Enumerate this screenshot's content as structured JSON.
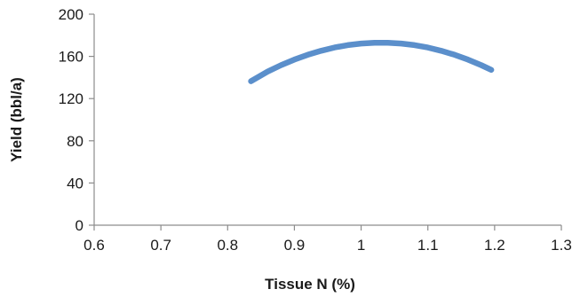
{
  "chart_data": {
    "type": "line",
    "title": "",
    "xlabel": "Tissue N (%)",
    "ylabel": "Yield (bbl/a)",
    "xlim": [
      0.6,
      1.3
    ],
    "ylim": [
      0,
      200
    ],
    "x_ticks": [
      "0.6",
      "0.7",
      "0.8",
      "0.9",
      "1",
      "1.1",
      "1.2",
      "1.3"
    ],
    "y_ticks": [
      "0",
      "40",
      "80",
      "120",
      "160",
      "200"
    ],
    "grid": false,
    "legend": "none",
    "series": [
      {
        "color": "#5b8fcb",
        "x": [
          0.835,
          0.86,
          0.88,
          0.9,
          0.92,
          0.94,
          0.96,
          0.98,
          1.0,
          1.02,
          1.04,
          1.06,
          1.08,
          1.1,
          1.12,
          1.14,
          1.16,
          1.18,
          1.195
        ],
        "y": [
          136.5,
          145.6,
          151.7,
          157.0,
          161.5,
          165.3,
          168.4,
          170.7,
          172.2,
          172.9,
          172.9,
          172.2,
          170.7,
          168.4,
          165.3,
          161.5,
          157.0,
          151.7,
          147.2
        ]
      }
    ]
  }
}
